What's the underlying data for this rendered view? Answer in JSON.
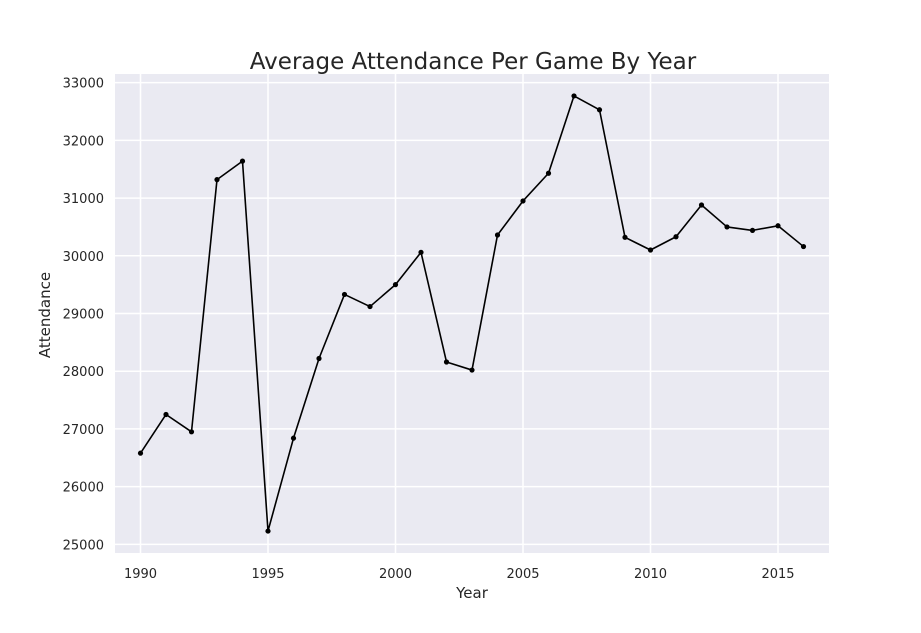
{
  "chart_data": {
    "type": "line",
    "title": "Average Attendance Per Game By Year",
    "xlabel": "Year",
    "ylabel": "Attendance",
    "xlim": [
      1989,
      2017
    ],
    "ylim": [
      24850,
      33150
    ],
    "x_ticks": [
      1990,
      1995,
      2000,
      2005,
      2010,
      2015
    ],
    "y_ticks": [
      25000,
      26000,
      27000,
      28000,
      29000,
      30000,
      31000,
      32000,
      33000
    ],
    "grid": true,
    "legend": false,
    "colors": {
      "background": "#eaeaf2",
      "grid": "#ffffff",
      "line": "#000000",
      "text": "#262626"
    },
    "x": [
      1990,
      1991,
      1992,
      1993,
      1994,
      1995,
      1996,
      1997,
      1998,
      1999,
      2000,
      2001,
      2002,
      2003,
      2004,
      2005,
      2006,
      2007,
      2008,
      2009,
      2010,
      2011,
      2012,
      2013,
      2014,
      2015,
      2016
    ],
    "values": [
      26580,
      27250,
      26950,
      31320,
      31640,
      25230,
      26840,
      28220,
      29330,
      29120,
      29500,
      30060,
      28160,
      28020,
      30360,
      30950,
      31430,
      32770,
      32530,
      30320,
      30100,
      30330,
      30880,
      30500,
      30440,
      30520,
      30160
    ]
  }
}
